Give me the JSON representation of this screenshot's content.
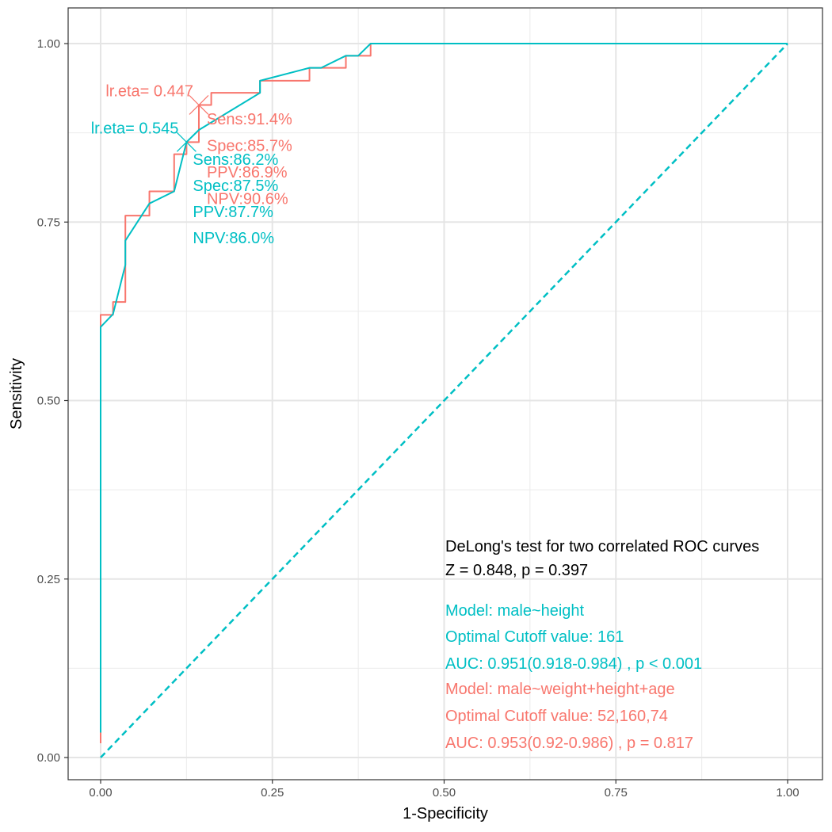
{
  "chart_data": {
    "type": "line",
    "xlabel": "1-Specificity",
    "ylabel": "Sensitivity",
    "xlim": [
      -0.1,
      1.05
    ],
    "ylim": [
      -0.031,
      1.055
    ],
    "x_ticks": [
      "0.00",
      "0.25",
      "0.50",
      "0.75",
      "1.00"
    ],
    "y_ticks": [
      "0.00",
      "0.25",
      "0.50",
      "0.75",
      "1.00"
    ],
    "grid": true,
    "colors": {
      "red": "#F8766D",
      "teal": "#00BFC4"
    },
    "series": [
      {
        "color": "#F8766D",
        "step": true,
        "x": [
          0,
          0,
          0.018,
          0.018,
          0.036,
          0.036,
          0.071,
          0.071,
          0.107,
          0.107,
          0.125,
          0.125,
          0.143,
          0.143,
          0.161,
          0.161,
          0.232,
          0.232,
          0.304,
          0.304,
          0.357,
          0.357,
          0.393,
          0.393,
          1.0
        ],
        "y": [
          0.02,
          0.62,
          0.62,
          0.638,
          0.638,
          0.759,
          0.759,
          0.793,
          0.793,
          0.845,
          0.845,
          0.862,
          0.862,
          0.914,
          0.914,
          0.931,
          0.931,
          0.948,
          0.948,
          0.966,
          0.966,
          0.983,
          0.983,
          1.0,
          1.0
        ]
      },
      {
        "color": "#00BFC4",
        "step": false,
        "x": [
          0,
          0,
          0.018,
          0.036,
          0.036,
          0.071,
          0.107,
          0.125,
          0.143,
          0.232,
          0.232,
          0.304,
          0.321,
          0.357,
          0.375,
          0.393,
          1.0
        ],
        "y": [
          0.035,
          0.603,
          0.621,
          0.69,
          0.724,
          0.776,
          0.793,
          0.862,
          0.879,
          0.931,
          0.948,
          0.966,
          0.966,
          0.983,
          0.983,
          1.0,
          1.0
        ]
      }
    ],
    "reference_line": {
      "x": [
        0,
        1
      ],
      "y": [
        0,
        1
      ],
      "color": "#00BFC4",
      "dash": "dashed"
    },
    "cutoff_points": [
      {
        "color": "#F8766D",
        "x": 0.143,
        "y": 0.914,
        "label": "lr.eta= 0.447",
        "stats": [
          "Sens:91.4%",
          "Spec:85.7%",
          "PPV:86.9%",
          "NPV:90.6%"
        ]
      },
      {
        "color": "#00BFC4",
        "x": 0.125,
        "y": 0.862,
        "label": "lr.eta= 0.545",
        "stats": [
          "Sens:86.2%",
          "Spec:87.5%",
          "PPV:87.7%",
          "NPV:86.0%"
        ]
      }
    ],
    "annotations": [
      {
        "text": "DeLong's test for two correlated ROC curves",
        "color": "#000000"
      },
      {
        "text": "Z = 0.848, p = 0.397",
        "color": "#000000"
      },
      {
        "text": "Model: male~height",
        "color": "#00BFC4"
      },
      {
        "text": "Optimal Cutoff value:  161",
        "color": "#00BFC4"
      },
      {
        "text": " AUC:  0.951(0.918-0.984) , p < 0.001",
        "color": "#00BFC4"
      },
      {
        "text": "Model: male~weight+height+age",
        "color": "#F8766D"
      },
      {
        "text": "Optimal Cutoff value:  52,160,74",
        "color": "#F8766D"
      },
      {
        "text": " AUC:  0.953(0.92-0.986) , p = 0.817",
        "color": "#F8766D"
      }
    ]
  }
}
